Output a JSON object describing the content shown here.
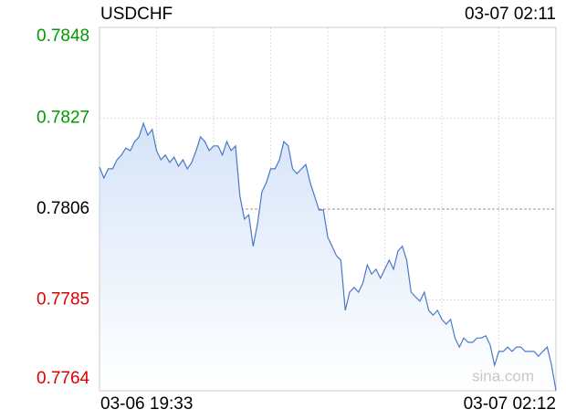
{
  "chart_data": {
    "type": "line",
    "title": "USDCHF",
    "timestamp": "03-07 02:11",
    "x_labels": [
      "03-06 19:33",
      "03-07 02:12"
    ],
    "watermark": "sina.com",
    "series": [
      {
        "name": "USDCHF",
        "color": "#4a78c8",
        "values": [
          0.78157,
          0.78132,
          0.78153,
          0.78153,
          0.78174,
          0.78185,
          0.78201,
          0.78195,
          0.78216,
          0.78227,
          0.78258,
          0.78231,
          0.78244,
          0.78195,
          0.78174,
          0.78185,
          0.78168,
          0.7818,
          0.78159,
          0.78174,
          0.78153,
          0.78168,
          0.78195,
          0.78227,
          0.78216,
          0.78195,
          0.78206,
          0.78206,
          0.78185,
          0.78216,
          0.78195,
          0.78206,
          0.7809,
          0.78037,
          0.78047,
          0.77974,
          0.78026,
          0.781,
          0.78121,
          0.78153,
          0.78153,
          0.78174,
          0.78216,
          0.78206,
          0.78153,
          0.78142,
          0.78153,
          0.78163,
          0.78121,
          0.7809,
          0.78058,
          0.78058,
          0.77995,
          0.77974,
          0.77952,
          0.77942,
          0.77826,
          0.77868,
          0.77879,
          0.77868,
          0.77889,
          0.77931,
          0.7791,
          0.77921,
          0.779,
          0.77921,
          0.77942,
          0.77921,
          0.77963,
          0.77974,
          0.77942,
          0.77868,
          0.77857,
          0.77847,
          0.77868,
          0.77826,
          0.77815,
          0.77826,
          0.77805,
          0.77794,
          0.77805,
          0.77762,
          0.77741,
          0.77762,
          0.77752,
          0.77752,
          0.77762,
          0.77762,
          0.77767,
          0.77746,
          0.77699,
          0.77731,
          0.77731,
          0.77741,
          0.77731,
          0.77741,
          0.77741,
          0.77731,
          0.77731,
          0.77731,
          0.7772,
          0.77731,
          0.77741,
          0.77699,
          0.7764
        ]
      }
    ],
    "ylim": [
      0.7764,
      0.7848
    ],
    "yticks": [
      0.7848,
      0.7827,
      0.7806,
      0.7785,
      0.7764
    ],
    "baseline": 0.7806,
    "up_color": "#009a00",
    "down_color": "#e00000",
    "grid": true
  }
}
